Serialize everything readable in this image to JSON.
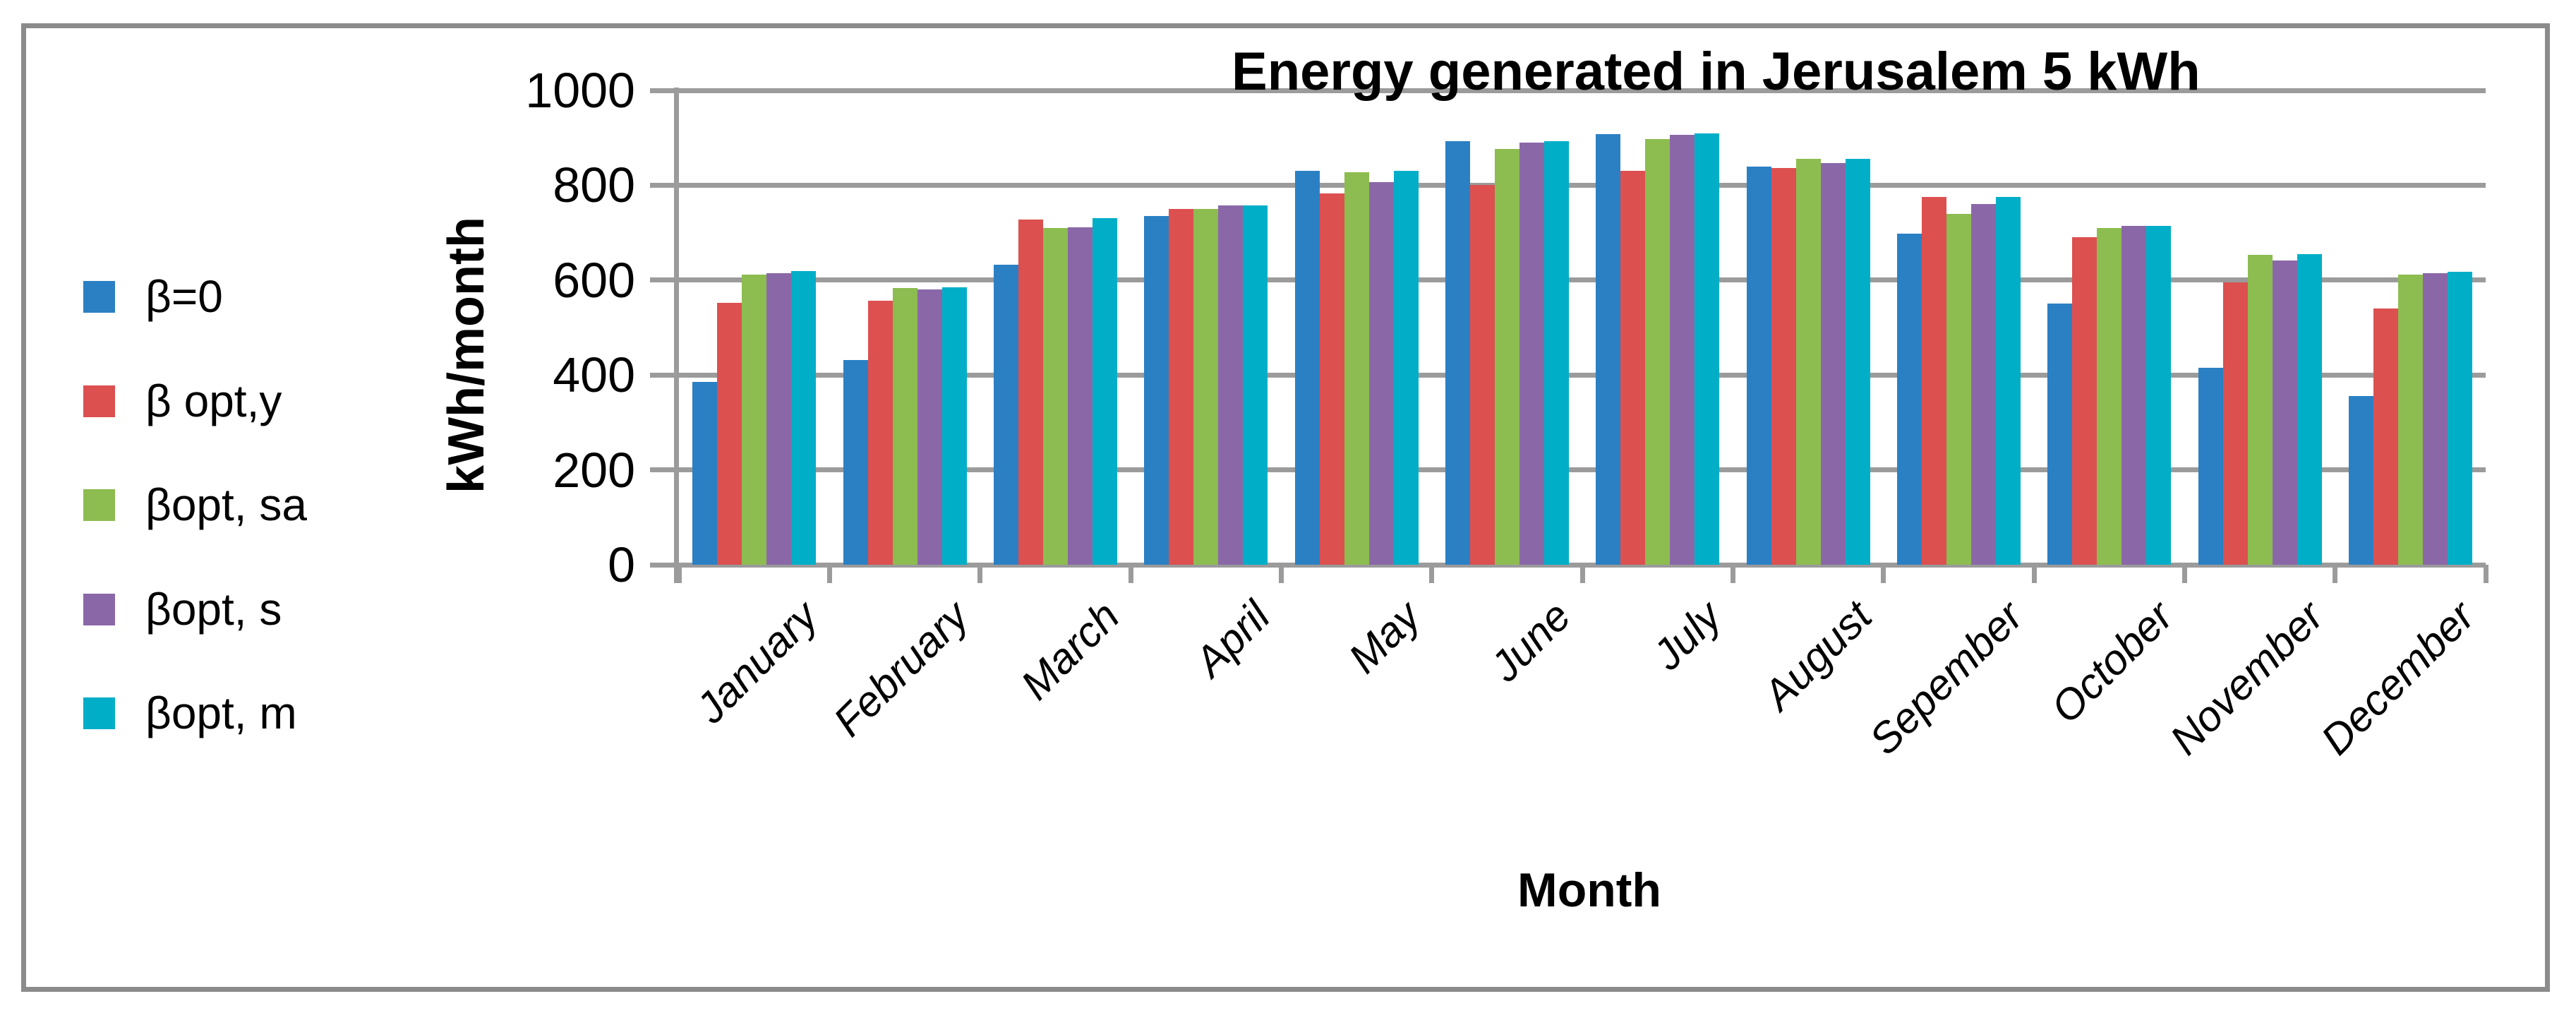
{
  "figure": {
    "background": "#ffffff",
    "border_color": "#8b8b8b",
    "gridline_color": "#9b9b9b"
  },
  "chart_data": {
    "type": "bar",
    "title": "Energy generated in Jerusalem 5 kWh",
    "xlabel": "Month",
    "ylabel": "kWh/month",
    "ylim": [
      0,
      1000
    ],
    "yticks": [
      0,
      200,
      400,
      600,
      800,
      1000
    ],
    "grid": true,
    "legend_position": "left",
    "categories": [
      "January",
      "February",
      "March",
      "April",
      "May",
      "June",
      "July",
      "August",
      "Sepember",
      "October",
      "November",
      "December"
    ],
    "series": [
      {
        "name": "β=0",
        "color": "#2b80c4",
        "values": [
          385,
          432,
          632,
          735,
          830,
          893,
          908,
          840,
          698,
          550,
          415,
          355
        ]
      },
      {
        "name": "β opt,y",
        "color": "#dc5050",
        "values": [
          552,
          556,
          728,
          750,
          782,
          800,
          830,
          837,
          776,
          690,
          595,
          540
        ]
      },
      {
        "name": "βopt, sa",
        "color": "#8dbc50",
        "values": [
          612,
          584,
          710,
          750,
          828,
          877,
          898,
          855,
          739,
          710,
          653,
          612
        ]
      },
      {
        "name": "βopt, s",
        "color": "#8a68a8",
        "values": [
          615,
          580,
          712,
          757,
          806,
          890,
          906,
          846,
          760,
          714,
          641,
          615
        ]
      },
      {
        "name": "βopt, m",
        "color": "#00aec8",
        "values": [
          619,
          585,
          730,
          757,
          830,
          893,
          909,
          856,
          776,
          714,
          655,
          618
        ]
      }
    ]
  }
}
